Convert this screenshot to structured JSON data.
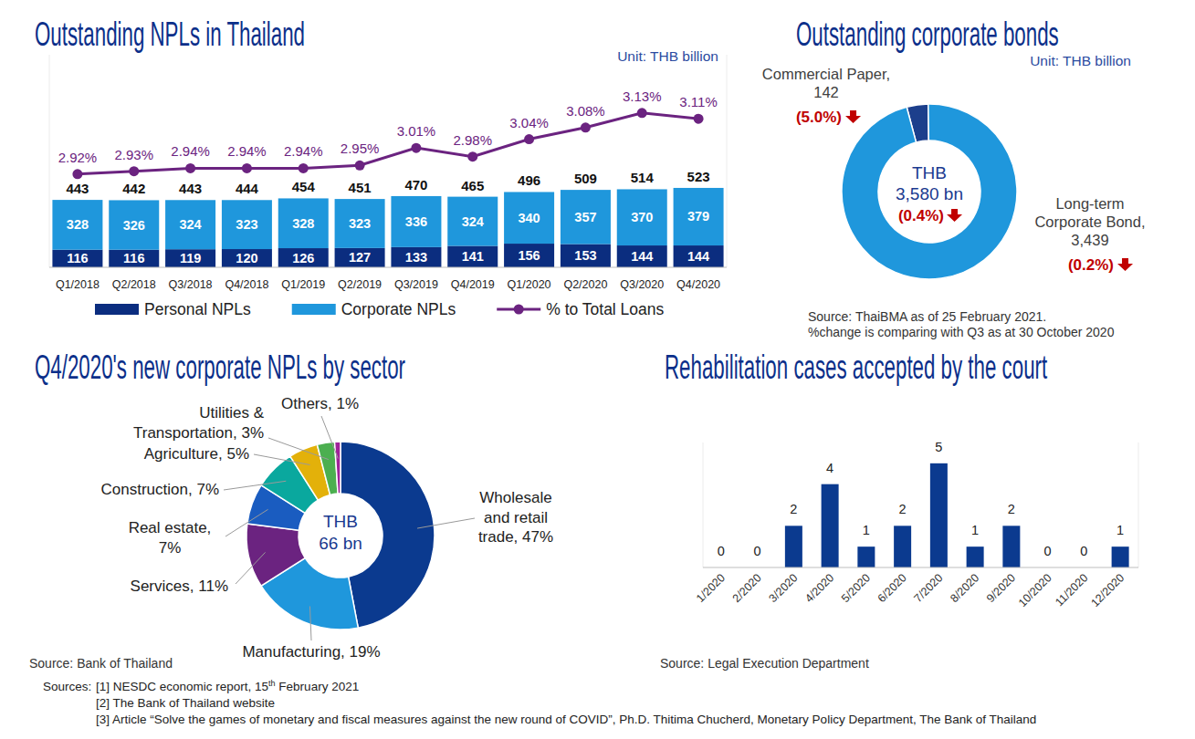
{
  "chart_data": [
    {
      "type": "bar",
      "title": "Outstanding NPLs in Thailand",
      "subtitle": "Unit: THB billion",
      "stacked": true,
      "data_labels": true,
      "tick_labels": "x",
      "legend": "bottom",
      "categories": [
        "Q1/2018",
        "Q2/2018",
        "Q3/2018",
        "Q4/2018",
        "Q1/2019",
        "Q2/2019",
        "Q3/2019",
        "Q4/2019",
        "Q1/2020",
        "Q2/2020",
        "Q3/2020",
        "Q4/2020"
      ],
      "series": [
        {
          "name": "Personal NPLs",
          "color": "#0b2d7f",
          "values": [
            116,
            116,
            119,
            120,
            126,
            127,
            133,
            141,
            156,
            153,
            144,
            144
          ]
        },
        {
          "name": "Corporate NPLs",
          "color": "#1f97dc",
          "values": [
            328,
            326,
            324,
            323,
            328,
            323,
            336,
            324,
            340,
            357,
            370,
            379
          ]
        },
        {
          "name": "% to Total Loans",
          "type": "line",
          "axis": "y2",
          "color": "#6b2380",
          "marker": "circle",
          "values": [
            2.92,
            2.93,
            2.94,
            2.94,
            2.94,
            2.95,
            3.01,
            2.98,
            3.04,
            3.08,
            3.13,
            3.11
          ],
          "value_labels": [
            "2.92%",
            "2.93%",
            "2.94%",
            "2.94%",
            "2.94%",
            "2.95%",
            "3.01%",
            "2.98%",
            "3.04%",
            "3.08%",
            "3.13%",
            "3.11%"
          ]
        }
      ],
      "totals": [
        443,
        442,
        443,
        444,
        454,
        451,
        470,
        465,
        496,
        509,
        514,
        523
      ],
      "ylim": [
        0,
        1400
      ],
      "y2lim": [
        2.6,
        3.33
      ]
    },
    {
      "type": "donut",
      "title": "Outstanding corporate bonds",
      "subtitle": "Unit: THB billion",
      "data_labels": true,
      "categories": [
        "Commercial Paper,",
        "Long-term Corporate Bond,"
      ],
      "values": [
        142,
        3439
      ],
      "value_labels": [
        "142",
        "3,439"
      ],
      "colors": [
        "#1c3f8c",
        "#1f97dc"
      ],
      "change_labels": [
        "(5.0%)",
        "(0.2%)"
      ],
      "center_labels": [
        "THB",
        "3,580 bn"
      ],
      "center_change_label": "(0.4%)",
      "source": [
        "Source: ThaiBMA as of 25 February 2021.",
        "%change is comparing with Q3 as at 30 October 2020"
      ]
    },
    {
      "type": "donut",
      "title": "Q4/2020's new corporate NPLs by sector",
      "data_labels": true,
      "categories": [
        "Wholesale and retail trade,",
        "Manufacturing,",
        "Services,",
        "Real estate,",
        "Construction,",
        "Agriculture,",
        "Utilities & Transportation,",
        "Others,"
      ],
      "values": [
        47,
        19,
        11,
        7,
        7,
        5,
        3,
        1
      ],
      "value_labels": [
        "47%",
        "19%",
        "11%",
        "7%",
        "7%",
        "5%",
        "3%",
        "1%"
      ],
      "colors": [
        "#0b3a8f",
        "#1f97dc",
        "#6b2380",
        "#1a5cc0",
        "#0aa89e",
        "#e3b10a",
        "#4caf50",
        "#a0229a"
      ],
      "center_labels": [
        "THB",
        "66 bn"
      ],
      "source": [
        "Source: Bank of Thailand"
      ]
    },
    {
      "type": "bar",
      "title": "Rehabilitation cases accepted by the court",
      "data_labels": true,
      "tick_labels": "x",
      "color": "#0b3a8f",
      "categories": [
        "1/2020",
        "2/2020",
        "3/2020",
        "4/2020",
        "5/2020",
        "6/2020",
        "7/2020",
        "8/2020",
        "9/2020",
        "10/2020",
        "11/2020",
        "12/2020"
      ],
      "values": [
        0,
        0,
        2,
        4,
        1,
        2,
        5,
        1,
        2,
        0,
        0,
        1
      ],
      "ylim": [
        0,
        6
      ],
      "source": [
        "Source: Legal Execution Department"
      ]
    }
  ],
  "footnotes": {
    "label": "Sources:",
    "items": [
      "[1] NESDC economic report, 15th February 2021",
      "[2] The Bank of Thailand website",
      "[3] Article “Solve the games of monetary and fiscal measures against the new round of COVID”, Ph.D. Thitima Chucherd, Monetary Policy Department, The Bank of Thailand"
    ]
  }
}
